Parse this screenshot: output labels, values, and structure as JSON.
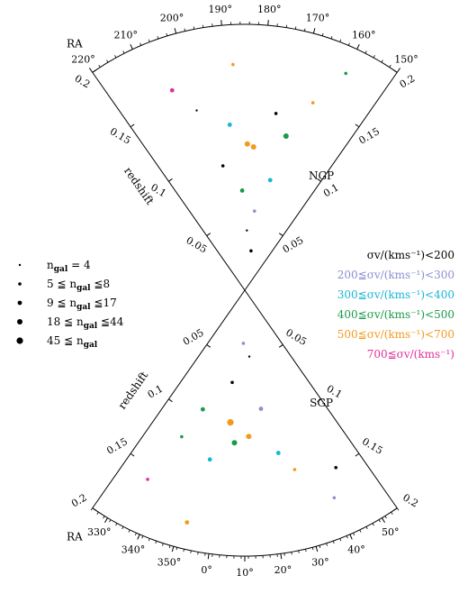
{
  "chart_data": {
    "type": "scatter",
    "subtype": "redshift-cone-diagram",
    "description_free": true,
    "panels": [
      {
        "id": "ngp",
        "region_label": "NGP",
        "coordinate": "RA (deg)",
        "coordinate_label": "RA",
        "radial_label": "redshift",
        "ra_range": [
          150,
          220
        ],
        "z_range": [
          0,
          0.2
        ],
        "ra_ticks": [
          "150°",
          "160°",
          "170°",
          "180°",
          "190°",
          "200°",
          "210°",
          "220°"
        ],
        "ra_tick_values": [
          150,
          160,
          170,
          180,
          190,
          200,
          210,
          220
        ],
        "z_ticks_left": [
          "0.05",
          "0.1",
          "0.15",
          "0.2"
        ],
        "z_ticks_right": [
          "0.05",
          "0.1",
          "0.15",
          "0.2"
        ],
        "z_tick_values": [
          0.05,
          0.1,
          0.15,
          0.2
        ]
      },
      {
        "id": "sgp",
        "region_label": "SGP",
        "coordinate": "RA (deg)",
        "coordinate_label": "RA",
        "radial_label": "redshift",
        "ra_range": [
          -35,
          55
        ],
        "z_range": [
          0,
          0.2
        ],
        "ra_ticks": [
          "330°",
          "340°",
          "350°",
          "0°",
          "10°",
          "20°",
          "30°",
          "40°",
          "50°"
        ],
        "ra_tick_values": [
          -30,
          -20,
          -10,
          0,
          10,
          20,
          30,
          40,
          50
        ],
        "z_ticks_left": [
          "0.05",
          "0.1",
          "0.15",
          "0.2"
        ],
        "z_ticks_right": [
          "0.05",
          "0.1",
          "0.15",
          "0.2"
        ],
        "z_tick_values": [
          0.05,
          0.1,
          0.15,
          0.2
        ]
      }
    ],
    "size_legend": [
      {
        "label_pre": "",
        "label_var": "n",
        "label_sub": "gal",
        "label_post": " = 4",
        "min": 4,
        "max": 4
      },
      {
        "label_pre": "5 ≦",
        "label_var": "n",
        "label_sub": "gal",
        "label_post": " ≦8",
        "min": 5,
        "max": 8
      },
      {
        "label_pre": "9 ≦",
        "label_var": "n",
        "label_sub": "gal",
        "label_post": " ≦17",
        "min": 9,
        "max": 17
      },
      {
        "label_pre": "18 ≦",
        "label_var": "n",
        "label_sub": "gal",
        "label_post": " ≦44",
        "min": 18,
        "max": 44
      },
      {
        "label_pre": "45 ≦",
        "label_var": "n",
        "label_sub": "gal",
        "label_post": "",
        "min": 45,
        "max": null
      }
    ],
    "color_legend": [
      {
        "label": "σv/(kms⁻¹)<200",
        "color": "#000000",
        "min": 0,
        "max": 200
      },
      {
        "label": "200≦σv/(kms⁻¹)<300",
        "color": "#8a8fd0",
        "min": 200,
        "max": 300
      },
      {
        "label": "300≦σv/(kms⁻¹)<400",
        "color": "#19b6d6",
        "min": 300,
        "max": 400
      },
      {
        "label": "400≦σv/(kms⁻¹)<500",
        "color": "#1a9a4a",
        "min": 400,
        "max": 500
      },
      {
        "label": "500≦σv/(kms⁻¹)<700",
        "color": "#f39a1e",
        "min": 500,
        "max": 700
      },
      {
        "label": "700≦σv/(kms⁻¹)",
        "color": "#e0309a",
        "min": 700,
        "max": null
      }
    ],
    "series_sample": {
      "ngp": [
        {
          "ra": 181.5,
          "z": 0.108,
          "ngal": 30,
          "sigma": 650
        },
        {
          "ra": 184.0,
          "z": 0.11,
          "ngal": 22,
          "sigma": 520
        },
        {
          "ra": 190.2,
          "z": 0.125,
          "ngal": 12,
          "sigma": 320
        },
        {
          "ra": 175.0,
          "z": 0.135,
          "ngal": 6,
          "sigma": 180
        },
        {
          "ra": 186.5,
          "z": 0.075,
          "ngal": 15,
          "sigma": 430
        },
        {
          "ra": 178.0,
          "z": 0.06,
          "ngal": 7,
          "sigma": 250
        },
        {
          "ra": 172.0,
          "z": 0.085,
          "ngal": 9,
          "sigma": 380
        },
        {
          "ra": 195.0,
          "z": 0.095,
          "ngal": 5,
          "sigma": 150
        },
        {
          "ra": 165.0,
          "z": 0.15,
          "ngal": 8,
          "sigma": 560
        },
        {
          "ra": 205.0,
          "z": 0.16,
          "ngal": 10,
          "sigma": 720
        },
        {
          "ra": 200.0,
          "z": 0.14,
          "ngal": 4,
          "sigma": 120
        },
        {
          "ra": 160.0,
          "z": 0.18,
          "ngal": 6,
          "sigma": 460
        },
        {
          "ra": 183.0,
          "z": 0.045,
          "ngal": 4,
          "sigma": 90
        },
        {
          "ra": 176.0,
          "z": 0.03,
          "ngal": 5,
          "sigma": 160
        },
        {
          "ra": 188.0,
          "z": 0.17,
          "ngal": 7,
          "sigma": 610
        },
        {
          "ra": 170.0,
          "z": 0.12,
          "ngal": 20,
          "sigma": 410
        }
      ],
      "sgp": [
        {
          "ra": 12.0,
          "z": 0.11,
          "ngal": 28,
          "sigma": 620
        },
        {
          "ra": 5.0,
          "z": 0.115,
          "ngal": 18,
          "sigma": 470
        },
        {
          "ra": -5.0,
          "z": 0.13,
          "ngal": 12,
          "sigma": 330
        },
        {
          "ra": 20.0,
          "z": 0.09,
          "ngal": 9,
          "sigma": 260
        },
        {
          "ra": 0.0,
          "z": 0.07,
          "ngal": 8,
          "sigma": 190
        },
        {
          "ra": -15.0,
          "z": 0.095,
          "ngal": 14,
          "sigma": 420
        },
        {
          "ra": 30.0,
          "z": 0.14,
          "ngal": 6,
          "sigma": 540
        },
        {
          "ra": -25.0,
          "z": 0.16,
          "ngal": 5,
          "sigma": 750
        },
        {
          "ra": 40.0,
          "z": 0.17,
          "ngal": 7,
          "sigma": 230
        },
        {
          "ra": 15.0,
          "z": 0.05,
          "ngal": 4,
          "sigma": 110
        },
        {
          "ra": 8.0,
          "z": 0.04,
          "ngal": 5,
          "sigma": 280
        },
        {
          "ra": -8.0,
          "z": 0.18,
          "ngal": 10,
          "sigma": 600
        },
        {
          "ra": 25.0,
          "z": 0.125,
          "ngal": 16,
          "sigma": 360
        },
        {
          "ra": -20.0,
          "z": 0.12,
          "ngal": 8,
          "sigma": 470
        },
        {
          "ra": 45.0,
          "z": 0.15,
          "ngal": 6,
          "sigma": 150
        },
        {
          "ra": 2.0,
          "z": 0.1,
          "ngal": 45,
          "sigma": 680
        }
      ]
    }
  }
}
